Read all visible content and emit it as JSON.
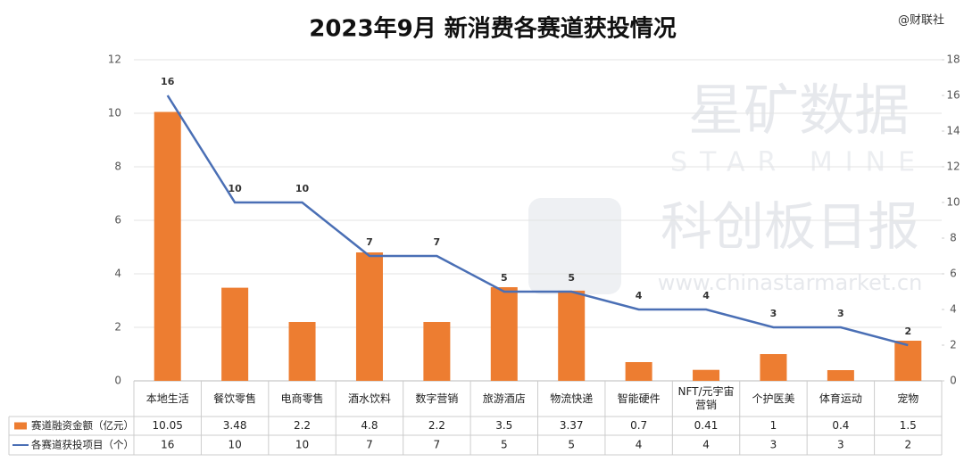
{
  "chart_data": {
    "type": "bar",
    "title": "2023年9月 新消费各赛道获投情况",
    "annotations": [
      "@财联社",
      "星矿数据",
      "STAR MINE",
      "科创板日报",
      "www.chinastarmarket.cn"
    ],
    "categories": [
      "本地生活",
      "餐饮零售",
      "电商零售",
      "酒水饮料",
      "数字营销",
      "旅游酒店",
      "物流快递",
      "智能硬件",
      "NFT/元宇宙营销",
      "个护医美",
      "体育运动",
      "宠物"
    ],
    "series": [
      {
        "name": "赛道融资金额（亿元）",
        "color": "#ed7d31",
        "type": "bar",
        "values": [
          10.05,
          3.48,
          2.2,
          4.8,
          2.2,
          3.5,
          3.37,
          0.7,
          0.41,
          1,
          0.4,
          1.5
        ]
      },
      {
        "name": "各赛道获投项目（个）",
        "color": "#4a6fb5",
        "type": "line",
        "axis": "y2",
        "values": [
          16,
          10,
          10,
          7,
          7,
          5,
          5,
          4,
          4,
          3,
          3,
          2
        ]
      }
    ],
    "ylim": [
      0,
      12
    ],
    "yticks": [
      0,
      2,
      4,
      6,
      8,
      10,
      12
    ],
    "y2lim": [
      0,
      18
    ],
    "y2ticks": [
      0,
      2,
      4,
      6,
      8,
      10,
      12,
      14,
      16,
      18
    ],
    "grid": true
  }
}
